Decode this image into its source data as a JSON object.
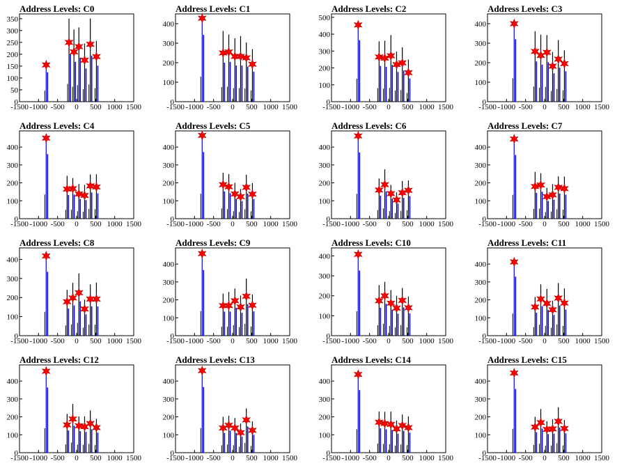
{
  "xlim": [
    -1500,
    1500
  ],
  "xticks": [
    "-1500",
    "-1000",
    "-500",
    "0",
    "500",
    "1000",
    "1500"
  ],
  "colors": {
    "histogram": "#0000ff",
    "marker": "#ff0000",
    "axis": "#000000"
  },
  "chart_data": [
    {
      "type": "bar",
      "title": "Address Levels: C0",
      "ylim": [
        0,
        370
      ],
      "yticks": [
        0,
        50,
        100,
        150,
        200,
        250,
        300,
        350
      ],
      "peaks": [
        {
          "x": -800,
          "y": 155
        },
        {
          "x": -200,
          "y": 250
        },
        {
          "x": -70,
          "y": 210
        },
        {
          "x": 60,
          "y": 232
        },
        {
          "x": 210,
          "y": 175
        },
        {
          "x": 360,
          "y": 242
        },
        {
          "x": 520,
          "y": 190
        }
      ]
    },
    {
      "type": "bar",
      "title": "Address Levels: C1",
      "ylim": [
        0,
        450
      ],
      "yticks": [
        0,
        100,
        200,
        300,
        400
      ],
      "peaks": [
        {
          "x": -800,
          "y": 428
        },
        {
          "x": -250,
          "y": 250
        },
        {
          "x": -100,
          "y": 255
        },
        {
          "x": 60,
          "y": 232
        },
        {
          "x": 210,
          "y": 232
        },
        {
          "x": 360,
          "y": 225
        },
        {
          "x": 520,
          "y": 192
        }
      ]
    },
    {
      "type": "bar",
      "title": "Address Levels: C2",
      "ylim": [
        0,
        520
      ],
      "yticks": [
        0,
        100,
        200,
        300,
        400,
        500
      ],
      "peaks": [
        {
          "x": -800,
          "y": 455
        },
        {
          "x": -250,
          "y": 265
        },
        {
          "x": -100,
          "y": 258
        },
        {
          "x": 60,
          "y": 272
        },
        {
          "x": 210,
          "y": 220
        },
        {
          "x": 360,
          "y": 230
        },
        {
          "x": 520,
          "y": 172
        }
      ]
    },
    {
      "type": "bar",
      "title": "Address Levels: C3",
      "ylim": [
        0,
        450
      ],
      "yticks": [
        0,
        100,
        200,
        300,
        400
      ],
      "peaks": [
        {
          "x": -800,
          "y": 400
        },
        {
          "x": -250,
          "y": 258
        },
        {
          "x": -100,
          "y": 237
        },
        {
          "x": 60,
          "y": 253
        },
        {
          "x": 210,
          "y": 182
        },
        {
          "x": 360,
          "y": 218
        },
        {
          "x": 520,
          "y": 195
        }
      ]
    },
    {
      "type": "bar",
      "title": "Address Levels: C4",
      "ylim": [
        0,
        490
      ],
      "yticks": [
        0,
        100,
        200,
        300,
        400
      ],
      "peaks": [
        {
          "x": -800,
          "y": 450
        },
        {
          "x": -250,
          "y": 165
        },
        {
          "x": -100,
          "y": 168
        },
        {
          "x": 60,
          "y": 138
        },
        {
          "x": 210,
          "y": 130
        },
        {
          "x": 360,
          "y": 183
        },
        {
          "x": 520,
          "y": 177
        }
      ]
    },
    {
      "type": "bar",
      "title": "Address Levels: C5",
      "ylim": [
        0,
        490
      ],
      "yticks": [
        0,
        100,
        200,
        300,
        400
      ],
      "peaks": [
        {
          "x": -800,
          "y": 465
        },
        {
          "x": -250,
          "y": 190
        },
        {
          "x": -100,
          "y": 178
        },
        {
          "x": 60,
          "y": 138
        },
        {
          "x": 210,
          "y": 123
        },
        {
          "x": 360,
          "y": 175
        },
        {
          "x": 520,
          "y": 137
        }
      ]
    },
    {
      "type": "bar",
      "title": "Address Levels: C6",
      "ylim": [
        0,
        490
      ],
      "yticks": [
        0,
        100,
        200,
        300,
        400
      ],
      "peaks": [
        {
          "x": -800,
          "y": 462
        },
        {
          "x": -250,
          "y": 160
        },
        {
          "x": -100,
          "y": 190
        },
        {
          "x": 60,
          "y": 140
        },
        {
          "x": 210,
          "y": 105
        },
        {
          "x": 360,
          "y": 145
        },
        {
          "x": 520,
          "y": 158
        }
      ]
    },
    {
      "type": "bar",
      "title": "Address Levels: C7",
      "ylim": [
        0,
        490
      ],
      "yticks": [
        0,
        100,
        200,
        300,
        400
      ],
      "peaks": [
        {
          "x": -800,
          "y": 445
        },
        {
          "x": -250,
          "y": 180
        },
        {
          "x": -100,
          "y": 188
        },
        {
          "x": 60,
          "y": 123
        },
        {
          "x": 210,
          "y": 133
        },
        {
          "x": 360,
          "y": 175
        },
        {
          "x": 520,
          "y": 168
        }
      ]
    },
    {
      "type": "bar",
      "title": "Address Levels: C8",
      "ylim": [
        0,
        460
      ],
      "yticks": [
        0,
        100,
        200,
        300,
        400
      ],
      "peaks": [
        {
          "x": -800,
          "y": 418
        },
        {
          "x": -250,
          "y": 178
        },
        {
          "x": -100,
          "y": 198
        },
        {
          "x": 60,
          "y": 225
        },
        {
          "x": 210,
          "y": 140
        },
        {
          "x": 360,
          "y": 192
        },
        {
          "x": 520,
          "y": 192
        }
      ]
    },
    {
      "type": "bar",
      "title": "Address Levels: C9",
      "ylim": [
        0,
        490
      ],
      "yticks": [
        0,
        100,
        200,
        300,
        400
      ],
      "peaks": [
        {
          "x": -800,
          "y": 458
        },
        {
          "x": -250,
          "y": 168
        },
        {
          "x": -100,
          "y": 168
        },
        {
          "x": 60,
          "y": 195
        },
        {
          "x": 210,
          "y": 160
        },
        {
          "x": 360,
          "y": 220
        },
        {
          "x": 520,
          "y": 170
        }
      ]
    },
    {
      "type": "bar",
      "title": "Address Levels: C10",
      "ylim": [
        0,
        440
      ],
      "yticks": [
        0,
        100,
        200,
        300,
        400
      ],
      "peaks": [
        {
          "x": -800,
          "y": 408
        },
        {
          "x": -250,
          "y": 175
        },
        {
          "x": -100,
          "y": 200
        },
        {
          "x": 60,
          "y": 163
        },
        {
          "x": 210,
          "y": 138
        },
        {
          "x": 360,
          "y": 177
        },
        {
          "x": 520,
          "y": 140
        }
      ]
    },
    {
      "type": "bar",
      "title": "Address Levels: C11",
      "ylim": [
        0,
        490
      ],
      "yticks": [
        0,
        100,
        200,
        300,
        400
      ],
      "peaks": [
        {
          "x": -800,
          "y": 412
        },
        {
          "x": -250,
          "y": 160
        },
        {
          "x": -100,
          "y": 205
        },
        {
          "x": 60,
          "y": 180
        },
        {
          "x": 210,
          "y": 145
        },
        {
          "x": 360,
          "y": 210
        },
        {
          "x": 520,
          "y": 182
        }
      ]
    },
    {
      "type": "bar",
      "title": "Address Levels: C12",
      "ylim": [
        0,
        490
      ],
      "yticks": [
        0,
        100,
        200,
        300,
        400
      ],
      "peaks": [
        {
          "x": -800,
          "y": 455
        },
        {
          "x": -250,
          "y": 155
        },
        {
          "x": -100,
          "y": 188
        },
        {
          "x": 60,
          "y": 150
        },
        {
          "x": 210,
          "y": 145
        },
        {
          "x": 360,
          "y": 163
        },
        {
          "x": 520,
          "y": 140
        }
      ]
    },
    {
      "type": "bar",
      "title": "Address Levels: C13",
      "ylim": [
        0,
        490
      ],
      "yticks": [
        0,
        100,
        200,
        300,
        400
      ],
      "peaks": [
        {
          "x": -800,
          "y": 458
        },
        {
          "x": -250,
          "y": 138
        },
        {
          "x": -100,
          "y": 153
        },
        {
          "x": 60,
          "y": 138
        },
        {
          "x": 210,
          "y": 112
        },
        {
          "x": 360,
          "y": 183
        },
        {
          "x": 520,
          "y": 125
        }
      ]
    },
    {
      "type": "bar",
      "title": "Address Levels: C14",
      "ylim": [
        0,
        490
      ],
      "yticks": [
        0,
        100,
        200,
        300,
        400
      ],
      "peaks": [
        {
          "x": -800,
          "y": 437
        },
        {
          "x": -250,
          "y": 170
        },
        {
          "x": -100,
          "y": 163
        },
        {
          "x": 60,
          "y": 158
        },
        {
          "x": 210,
          "y": 133
        },
        {
          "x": 360,
          "y": 152
        },
        {
          "x": 520,
          "y": 140
        }
      ]
    },
    {
      "type": "bar",
      "title": "Address Levels: C15",
      "ylim": [
        0,
        490
      ],
      "yticks": [
        0,
        100,
        200,
        300,
        400
      ],
      "peaks": [
        {
          "x": -800,
          "y": 445
        },
        {
          "x": -250,
          "y": 143
        },
        {
          "x": -100,
          "y": 168
        },
        {
          "x": 60,
          "y": 130
        },
        {
          "x": 210,
          "y": 133
        },
        {
          "x": 360,
          "y": 175
        },
        {
          "x": 520,
          "y": 135
        }
      ]
    }
  ]
}
